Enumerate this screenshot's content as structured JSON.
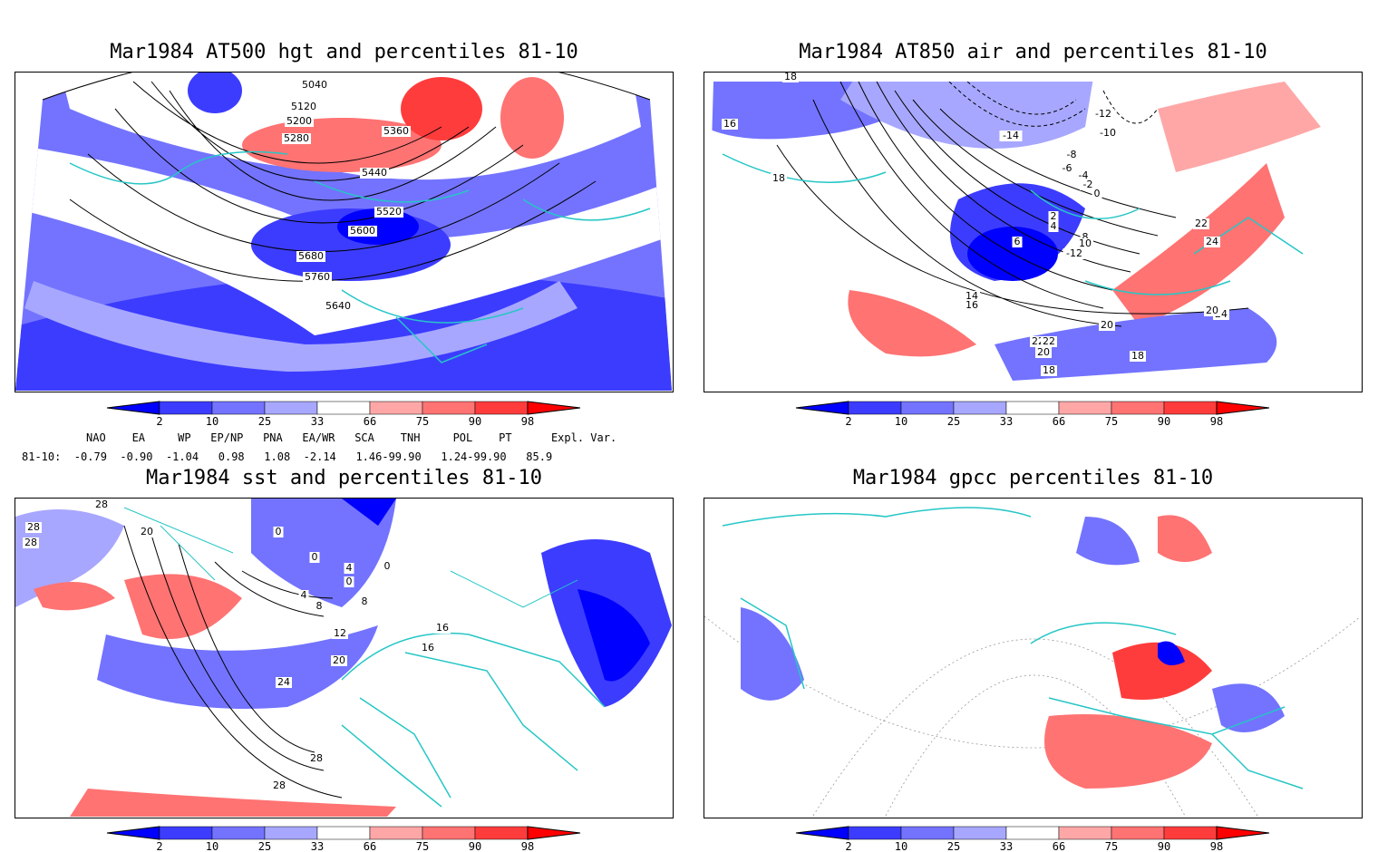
{
  "panels": [
    {
      "title": "Mar1984 AT500 hgt and percentiles 81-10",
      "contour_labels": [
        "5040",
        "5120",
        "5200",
        "5280",
        "5360",
        "5440",
        "5520",
        "5600",
        "5680",
        "5760",
        "5640"
      ]
    },
    {
      "title": "Mar1984 AT850 air and percentiles 81-10",
      "contour_labels": [
        "18",
        "16",
        "18",
        "-12",
        "-10",
        "-14",
        "-8",
        "-6",
        "-4",
        "-2",
        "0",
        "2",
        "4",
        "6",
        "8",
        "10",
        "-12",
        "14",
        "16",
        "22",
        "20",
        "18",
        "22",
        "24",
        "20",
        "24",
        "20",
        "18",
        "22"
      ]
    },
    {
      "title": "Mar1984 sst and percentiles 81-10",
      "contour_labels": [
        "28",
        "28",
        "20",
        "28",
        "0",
        "0",
        "4",
        "0",
        "0",
        "4",
        "8",
        "8",
        "12",
        "16",
        "16",
        "20",
        "24",
        "28",
        "28"
      ]
    },
    {
      "title": "Mar1984 gpcc percentiles 81-10",
      "contour_labels": []
    }
  ],
  "colorbar": {
    "ticks": [
      "2",
      "10",
      "25",
      "33",
      "66",
      "75",
      "90",
      "98"
    ],
    "colors": [
      "#0000ff",
      "#3c3cff",
      "#7373ff",
      "#a7a7ff",
      "#ffffff",
      "#ffa7a7",
      "#ff7373",
      "#ff3c3c",
      "#ff0000"
    ]
  },
  "teleconnections": {
    "header": "NAO    EA     WP   EP/NP   PNA   EA/WR   SCA    TNH     POL    PT      Expl. Var.",
    "row": "81-10:  -0.79  -0.90  -1.04   0.98   1.08  -2.14   1.46-99.90   1.24-99.90   85.9"
  },
  "colors": {
    "coastline": "#26c6c6",
    "contour": "#000000",
    "grid": "#999999"
  }
}
